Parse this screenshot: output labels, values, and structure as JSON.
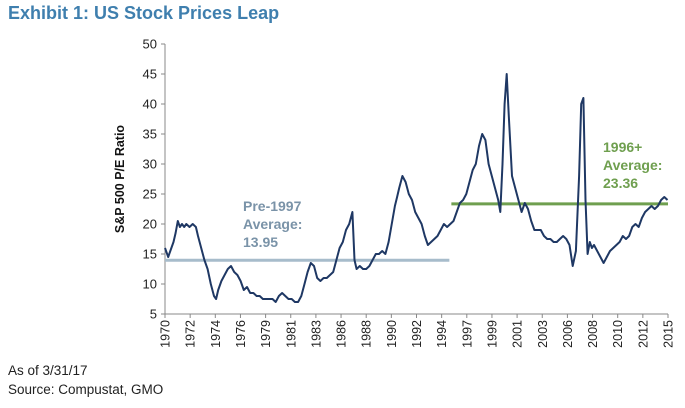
{
  "exhibit_title": "Exhibit 1: US Stock Prices Leap",
  "colors": {
    "title": "#3f7fae",
    "line": "#1f3864",
    "pre_avg": "#a7bccb",
    "post_avg": "#6f9f4f",
    "pre_label": "#7a93a8",
    "post_label": "#6f9f4f"
  },
  "footnotes": {
    "as_of": "As of 3/31/17",
    "source": "Source: Compustat, GMO"
  },
  "chart_data": {
    "type": "line",
    "title": "",
    "ylabel": "S&P 500 P/E Ratio",
    "xlabel": "",
    "ylim": [
      5,
      50
    ],
    "yticks": [
      5,
      10,
      15,
      20,
      25,
      30,
      35,
      40,
      45,
      50
    ],
    "xlim": [
      1970.0,
      2017.25
    ],
    "xtick_labels": [
      "1970",
      "1972",
      "1974",
      "1976",
      "1979",
      "1981",
      "1983",
      "1986",
      "1988",
      "1990",
      "1992",
      "1994",
      "1997",
      "1999",
      "2001",
      "2003",
      "2006",
      "2008",
      "2010",
      "2012",
      "2015"
    ],
    "grid": false,
    "series": [
      {
        "x": [
          1970.0,
          1970.3,
          1970.5,
          1970.8,
          1971.0,
          1971.2,
          1971.4,
          1971.6,
          1971.8,
          1972.0,
          1972.3,
          1972.6,
          1972.9,
          1973.1,
          1973.4,
          1973.7,
          1974.0,
          1974.3,
          1974.6,
          1974.8,
          1975.0,
          1975.3,
          1975.6,
          1975.9,
          1976.2,
          1976.5,
          1976.8,
          1977.1,
          1977.4,
          1977.7,
          1978.0,
          1978.3,
          1978.6,
          1978.9,
          1979.2,
          1979.5,
          1979.8,
          1980.1,
          1980.4,
          1980.7,
          1981.0,
          1981.3,
          1981.6,
          1981.9,
          1982.2,
          1982.5,
          1982.8,
          1983.1,
          1983.4,
          1983.7,
          1984.0,
          1984.3,
          1984.6,
          1984.9,
          1985.2,
          1985.5,
          1985.8,
          1986.1,
          1986.4,
          1986.7,
          1987.0,
          1987.3,
          1987.6,
          1987.8,
          1988.0,
          1988.3,
          1988.6,
          1988.9,
          1989.2,
          1989.5,
          1989.8,
          1990.1,
          1990.4,
          1990.7,
          1991.0,
          1991.2,
          1991.4,
          1991.6,
          1991.8,
          1992.0,
          1992.3,
          1992.6,
          1992.9,
          1993.2,
          1993.5,
          1993.8,
          1994.1,
          1994.4,
          1994.7,
          1995.0,
          1995.3,
          1995.6,
          1995.9,
          1996.2,
          1996.5,
          1996.8,
          1997.1,
          1997.4,
          1997.7,
          1998.0,
          1998.3,
          1998.6,
          1998.9,
          1999.2,
          1999.5,
          1999.8,
          2000.1,
          2000.4,
          2000.7,
          2001.0,
          2001.3,
          2001.5,
          2001.7,
          2001.9,
          2002.1,
          2002.3,
          2002.6,
          2002.9,
          2003.2,
          2003.5,
          2003.8,
          2004.1,
          2004.4,
          2004.7,
          2005.0,
          2005.3,
          2005.6,
          2005.9,
          2006.2,
          2006.5,
          2006.8,
          2007.1,
          2007.4,
          2007.7,
          2008.0,
          2008.3,
          2008.6,
          2008.9,
          2009.1,
          2009.3,
          2009.5,
          2009.7,
          2009.9,
          2010.1,
          2010.3,
          2010.6,
          2010.9,
          2011.2,
          2011.5,
          2011.8,
          2012.1,
          2012.4,
          2012.7,
          2013.0,
          2013.3,
          2013.6,
          2013.9,
          2014.2,
          2014.5,
          2014.8,
          2015.1,
          2015.4,
          2015.7,
          2016.0,
          2016.3,
          2016.6,
          2016.9,
          2017.2
        ],
        "values": [
          16,
          14.5,
          15.5,
          17,
          18.5,
          20.5,
          19.5,
          20,
          19.5,
          20,
          19.5,
          20,
          19.5,
          18,
          16,
          14,
          12.5,
          10,
          8,
          7.5,
          9,
          10.5,
          11.5,
          12.5,
          13,
          12,
          11.5,
          10.5,
          9,
          9.5,
          8.5,
          8.5,
          8,
          8,
          7.5,
          7.5,
          7.5,
          7.5,
          7,
          8,
          8.5,
          8,
          7.5,
          7.5,
          7,
          7,
          8,
          10,
          12,
          13.5,
          13,
          11,
          10.5,
          11,
          11,
          11.5,
          12,
          14,
          16,
          17,
          19,
          20,
          22,
          14,
          12.5,
          13,
          12.5,
          12.5,
          13,
          14,
          15,
          15,
          15.5,
          15,
          17,
          19,
          21,
          23,
          24.5,
          26,
          28,
          27,
          25,
          24,
          22,
          21,
          20,
          18,
          16.5,
          17,
          17.5,
          18,
          19,
          20,
          19.5,
          20,
          20.5,
          22,
          23.5,
          24,
          25,
          27,
          29,
          30,
          33,
          35,
          34,
          30,
          28,
          26,
          24,
          22,
          30,
          40,
          45,
          38,
          28,
          26,
          24,
          22,
          23.5,
          22.5,
          20.5,
          19,
          19,
          19,
          18,
          17.5,
          17.5,
          17,
          17,
          17.5,
          18,
          17.5,
          16.5,
          13,
          15.5,
          28,
          40,
          41,
          24,
          15,
          17,
          16,
          16.5,
          15.5,
          14.5,
          13.5,
          14.5,
          15.5,
          16,
          16.5,
          17,
          18,
          17.5,
          18,
          19.5,
          20,
          19.5,
          21,
          22,
          22.5,
          23,
          22.5,
          23,
          24,
          24.5,
          24
        ]
      }
    ],
    "annotations": [
      {
        "name": "Pre-1997 Average",
        "lines": [
          "Pre-1997",
          "Average:",
          "13.95"
        ],
        "value": 13.95,
        "x_start": 1970.0,
        "x_end": 1996.9
      },
      {
        "name": "1996+ Average",
        "lines": [
          "1996+",
          "Average:",
          "23.36"
        ],
        "value": 23.36,
        "x_start": 1996.9,
        "x_end": 2017.25
      }
    ]
  }
}
